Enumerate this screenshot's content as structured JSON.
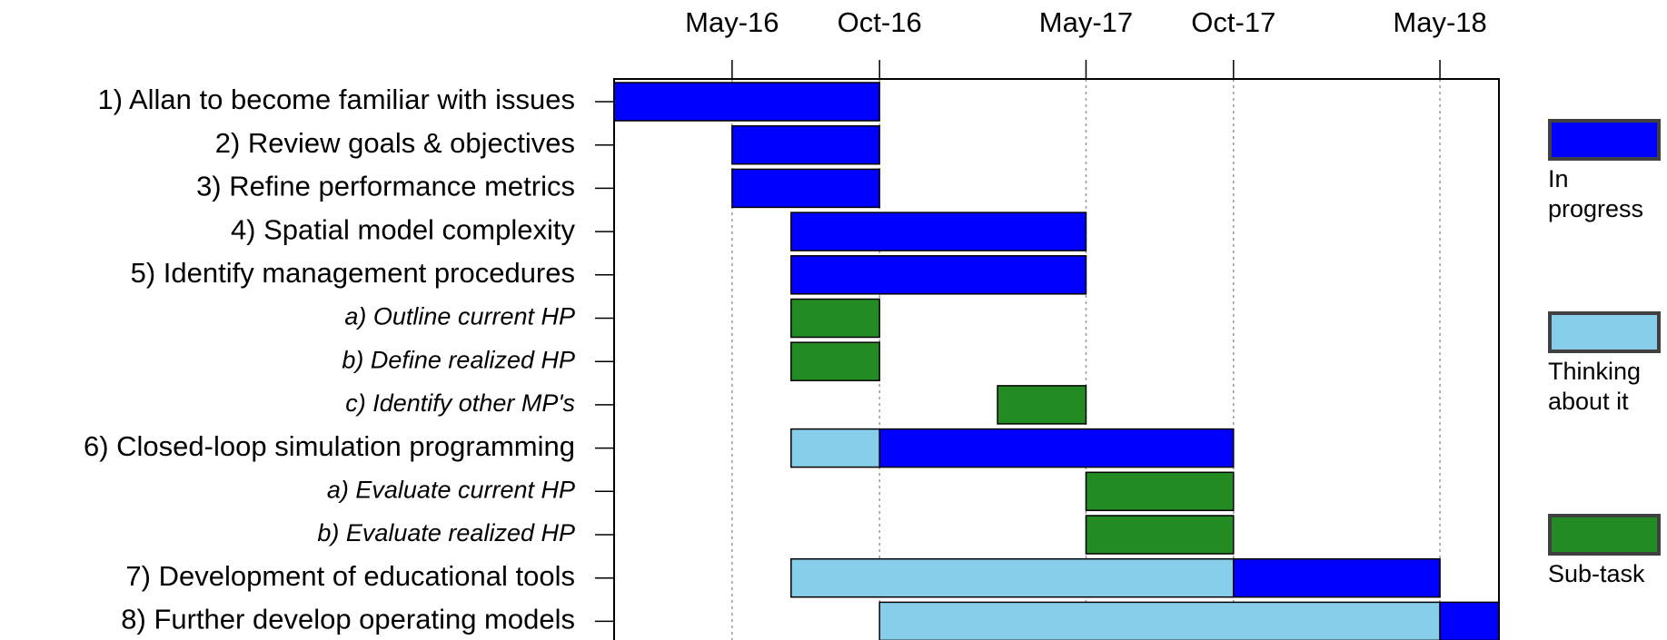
{
  "chart_data": {
    "type": "gantt",
    "xlim": [
      0,
      30
    ],
    "xticks": [
      {
        "value": 4,
        "label": "May-16"
      },
      {
        "value": 9,
        "label": "Oct-16"
      },
      {
        "value": 16,
        "label": "May-17"
      },
      {
        "value": 21,
        "label": "Oct-17"
      },
      {
        "value": 28,
        "label": "May-18"
      }
    ],
    "grid": true,
    "series": [
      {
        "name": "In progress",
        "color": "#0000ff"
      },
      {
        "name": "Thinking about it",
        "color": "#87ceeb"
      },
      {
        "name": "Sub-task",
        "color": "#228b22"
      }
    ],
    "tasks": [
      {
        "label": "1) Allan to become familiar with issues",
        "italic": false,
        "segments": [
          {
            "start": 0,
            "end": 9,
            "series": 0
          }
        ]
      },
      {
        "label": "2) Review goals & objectives",
        "italic": false,
        "segments": [
          {
            "start": 4,
            "end": 9,
            "series": 0
          }
        ]
      },
      {
        "label": "3) Refine performance metrics",
        "italic": false,
        "segments": [
          {
            "start": 4,
            "end": 9,
            "series": 0
          }
        ]
      },
      {
        "label": "4) Spatial model complexity",
        "italic": false,
        "segments": [
          {
            "start": 6,
            "end": 16,
            "series": 0
          }
        ]
      },
      {
        "label": "5) Identify management procedures",
        "italic": false,
        "segments": [
          {
            "start": 6,
            "end": 16,
            "series": 0
          }
        ]
      },
      {
        "label": "a) Outline current HP",
        "italic": true,
        "segments": [
          {
            "start": 6,
            "end": 9,
            "series": 2
          }
        ]
      },
      {
        "label": "b) Define realized HP",
        "italic": true,
        "segments": [
          {
            "start": 6,
            "end": 9,
            "series": 2
          }
        ]
      },
      {
        "label": "c) Identify other MP's",
        "italic": true,
        "segments": [
          {
            "start": 13,
            "end": 16,
            "series": 2
          }
        ]
      },
      {
        "label": "6) Closed-loop simulation programming",
        "italic": false,
        "segments": [
          {
            "start": 6,
            "end": 9,
            "series": 1
          },
          {
            "start": 9,
            "end": 21,
            "series": 0
          }
        ]
      },
      {
        "label": "a) Evaluate current HP",
        "italic": true,
        "segments": [
          {
            "start": 16,
            "end": 21,
            "series": 2
          }
        ]
      },
      {
        "label": "b) Evaluate realized HP",
        "italic": true,
        "segments": [
          {
            "start": 16,
            "end": 21,
            "series": 2
          }
        ]
      },
      {
        "label": "7) Development of educational tools",
        "italic": false,
        "segments": [
          {
            "start": 6,
            "end": 21,
            "series": 1
          },
          {
            "start": 21,
            "end": 28,
            "series": 0
          }
        ]
      },
      {
        "label": "8) Further develop operating models",
        "italic": false,
        "segments": [
          {
            "start": 9,
            "end": 28,
            "series": 1
          },
          {
            "start": 28,
            "end": 30,
            "series": 0
          }
        ]
      }
    ]
  }
}
